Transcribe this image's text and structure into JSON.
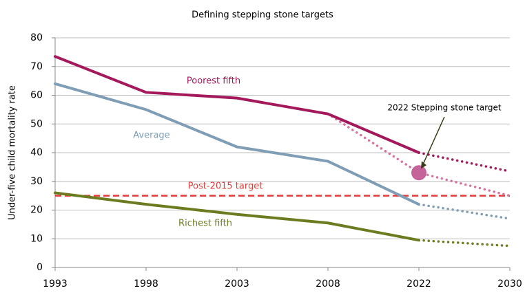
{
  "chart_data": {
    "type": "line",
    "title": "Defining stepping stone targets",
    "y_axis_label": "Under-five child mortality rate",
    "categories": [
      "1993",
      "1998",
      "2003",
      "2008",
      "2022",
      "2030"
    ],
    "ylim": [
      0,
      80
    ],
    "yticks": [
      0,
      10,
      20,
      30,
      40,
      50,
      60,
      70,
      80
    ],
    "grid": true,
    "series": [
      {
        "name": "Poorest fifth",
        "color": "#a3195b",
        "values": [
          73.5,
          61,
          59,
          53.5,
          40,
          null
        ],
        "projection": [
          null,
          null,
          null,
          null,
          40,
          33.5
        ]
      },
      {
        "name": "Average",
        "color": "#7f9db4",
        "values": [
          64,
          55,
          42,
          37,
          22,
          null
        ],
        "projection": [
          null,
          null,
          null,
          null,
          22,
          17
        ]
      },
      {
        "name": "Richest fifth",
        "color": "#6b7b1f",
        "values": [
          26,
          22,
          18.5,
          15.5,
          9.5,
          null
        ],
        "projection": [
          null,
          null,
          null,
          null,
          9.5,
          7.5
        ]
      }
    ],
    "stepping_stone_path": {
      "color": "#d4739f",
      "values": [
        null,
        null,
        null,
        53.5,
        33,
        25
      ]
    },
    "target": {
      "label": "Post-2015  target",
      "value": 25,
      "color": "#e03a3a"
    },
    "marker": {
      "label": "2022 Stepping stone target",
      "x": "2022",
      "value": 33,
      "color": "#c4649b"
    }
  }
}
